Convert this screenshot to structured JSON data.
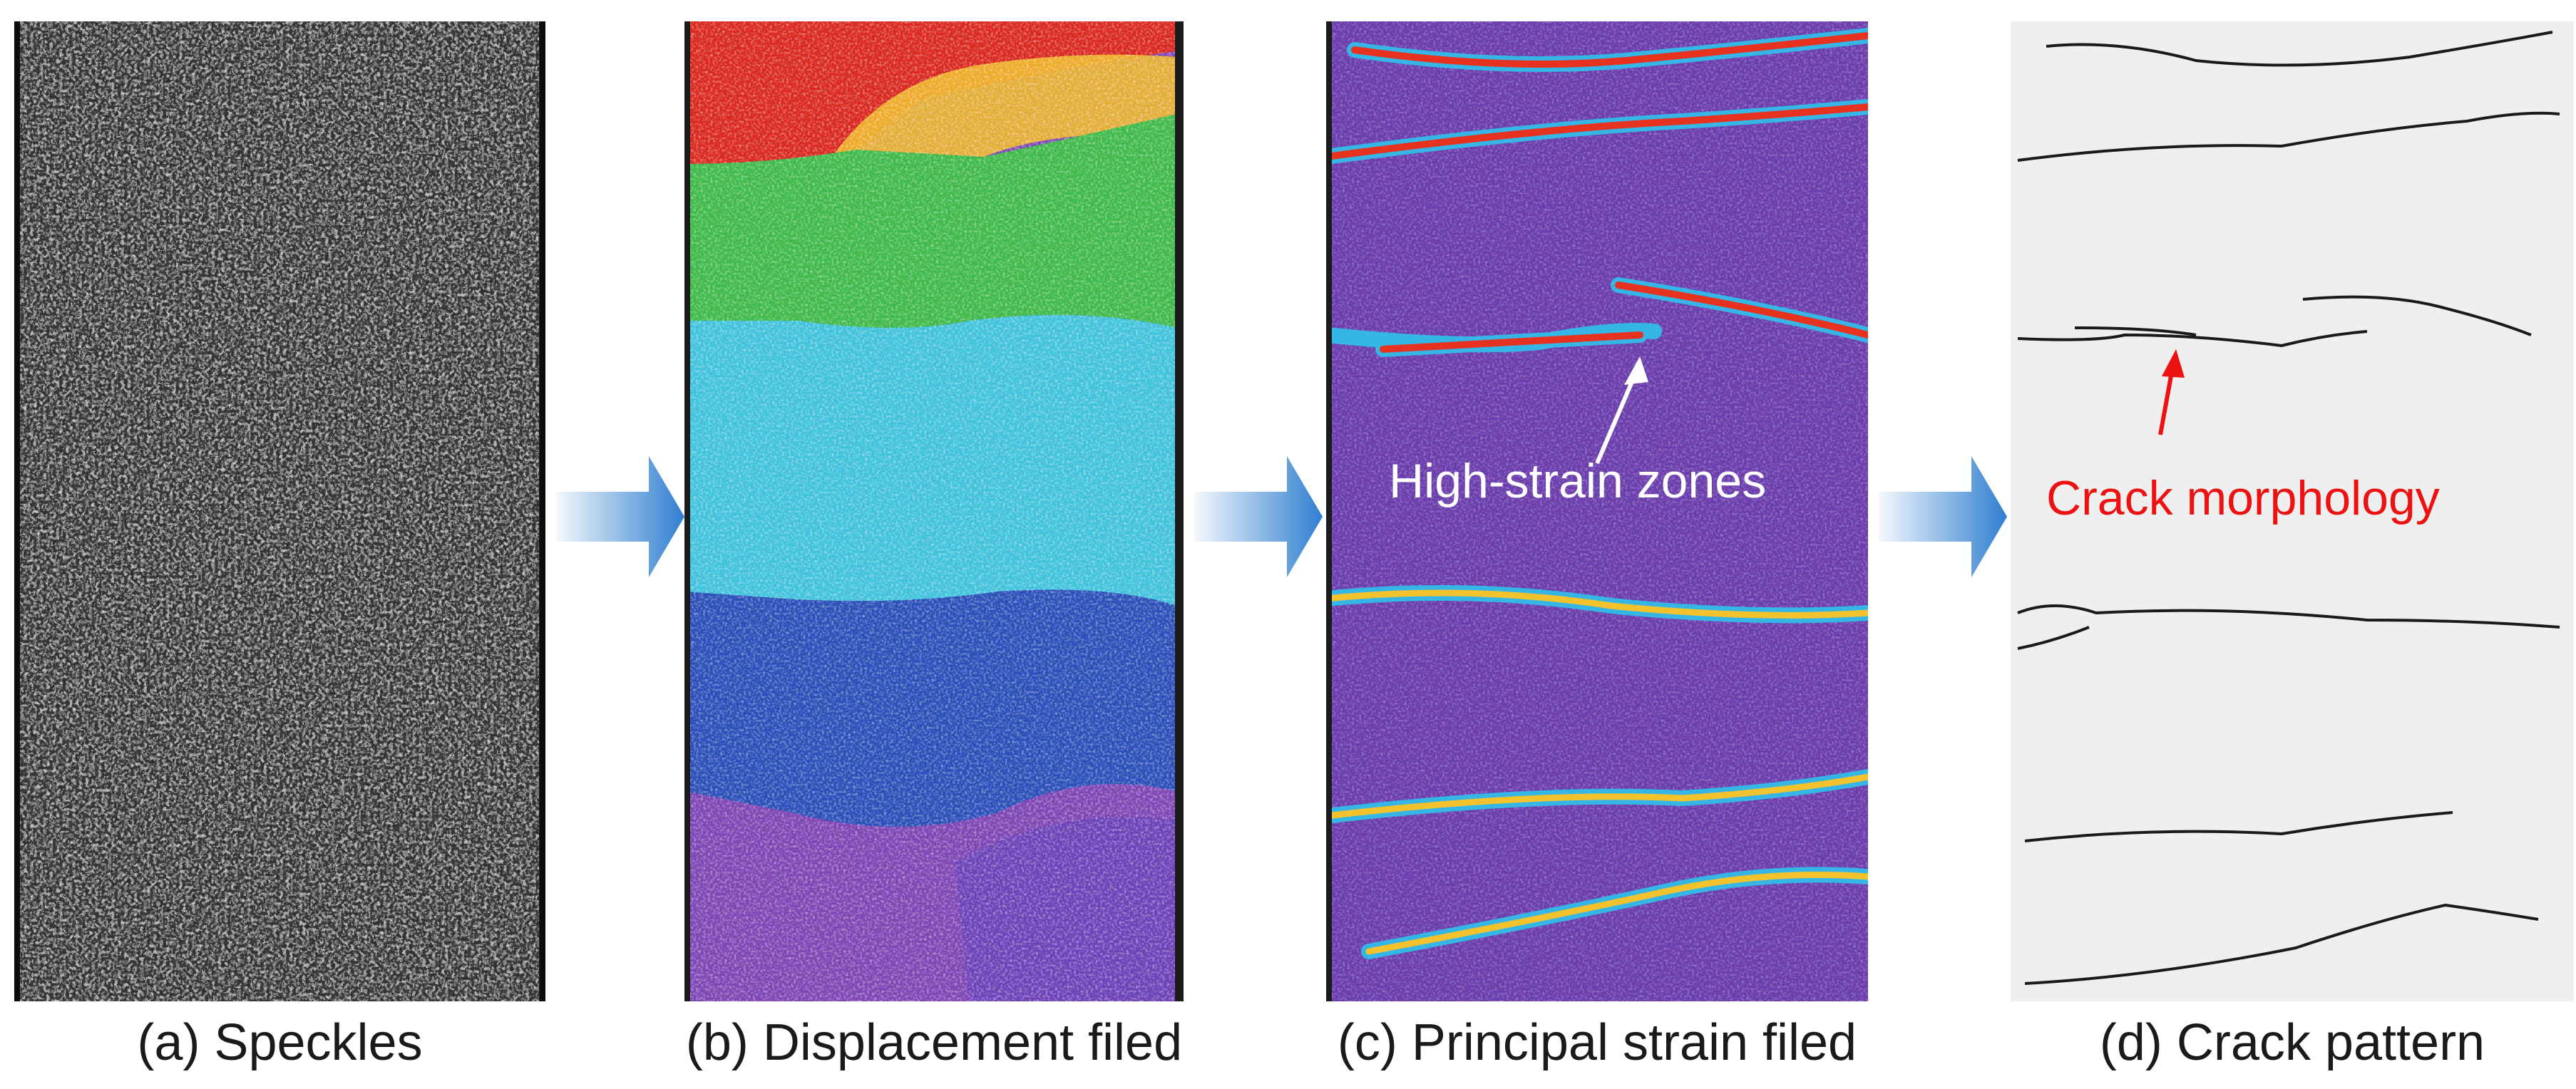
{
  "panels": [
    {
      "caption": "(a) Speckles"
    },
    {
      "caption": "(b) Displacement filed"
    },
    {
      "caption": "(c) Principal strain filed"
    },
    {
      "caption": "(d) Crack pattern"
    }
  ],
  "annotations": {
    "strain": {
      "text": "High-strain zones",
      "color": "#ffffff"
    },
    "crack": {
      "text": "Crack morphology",
      "color": "#ee1111"
    }
  },
  "colors": {
    "arrow": "#2f7fd0",
    "displacement_bands": [
      "#d9281f",
      "#f0b82a",
      "#3fb94a",
      "#41c2dc",
      "#2a4fb8",
      "#7e46b4"
    ],
    "strain_background": "#6a3cac",
    "strain_high": "#e6321e"
  },
  "icons": {
    "arrow": "right-arrow-icon"
  }
}
